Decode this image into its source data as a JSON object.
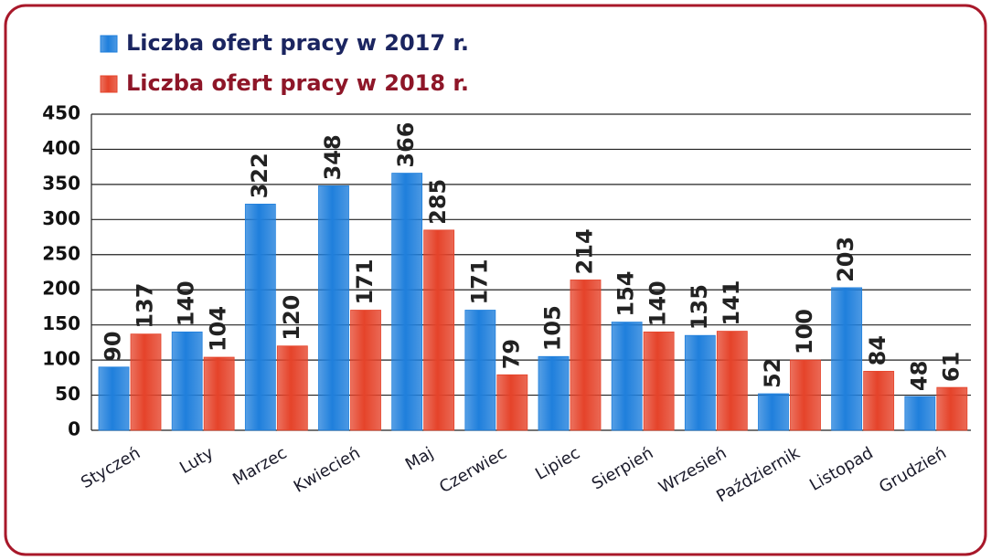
{
  "chart_data": {
    "type": "bar",
    "categories": [
      "Styczeń",
      "Luty",
      "Marzec",
      "Kwiecień",
      "Maj",
      "Czerwiec",
      "Lipiec",
      "Sierpień",
      "Wrzesień",
      "Październik",
      "Listopad",
      "Grudzień"
    ],
    "series": [
      {
        "name": "Liczba ofert pracy w 2017 r.",
        "color": "#1f7fdc",
        "values": [
          90,
          140,
          322,
          348,
          366,
          171,
          105,
          154,
          135,
          52,
          203,
          48
        ]
      },
      {
        "name": "Liczba ofert pracy w 2018 r.",
        "color": "#e5432a",
        "values": [
          137,
          104,
          120,
          171,
          285,
          79,
          214,
          140,
          141,
          100,
          84,
          61
        ]
      }
    ],
    "ylim": [
      0,
      450
    ],
    "yticks": [
      0,
      50,
      100,
      150,
      200,
      250,
      300,
      350,
      400,
      450
    ],
    "grid": true
  }
}
